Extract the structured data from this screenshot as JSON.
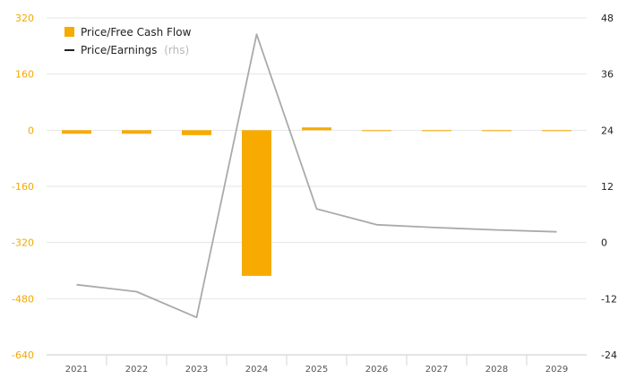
{
  "chart_data": {
    "type": "bar+line",
    "categories": [
      "2021",
      "2022",
      "2023",
      "2024",
      "2025",
      "2026",
      "2027",
      "2028",
      "2029"
    ],
    "series": [
      {
        "name": "Price/Free Cash Flow",
        "type": "bar",
        "axis": "left",
        "color": "#f7ab00",
        "values": [
          -10,
          -10,
          -14,
          -415,
          8,
          -2,
          -2,
          -2,
          0
        ]
      },
      {
        "name": "Price/Earnings",
        "name_suffix": "(rhs)",
        "type": "line",
        "axis": "right",
        "color": "#aaaaaa",
        "legend_color": "#222222",
        "values": [
          -9,
          -10.5,
          -16,
          44.5,
          7.2,
          3.8,
          3.2,
          2.7,
          2.3
        ]
      }
    ],
    "left_axis": {
      "min": -640,
      "max": 320,
      "ticks": [
        "320",
        "160",
        "0",
        "-160",
        "-320",
        "-480",
        "-640"
      ]
    },
    "right_axis": {
      "min": -24,
      "max": 48,
      "ticks": [
        "48",
        "36",
        "24",
        "12",
        "0",
        "-12",
        "-24"
      ]
    },
    "grid": true,
    "legend_position": "top-left"
  }
}
